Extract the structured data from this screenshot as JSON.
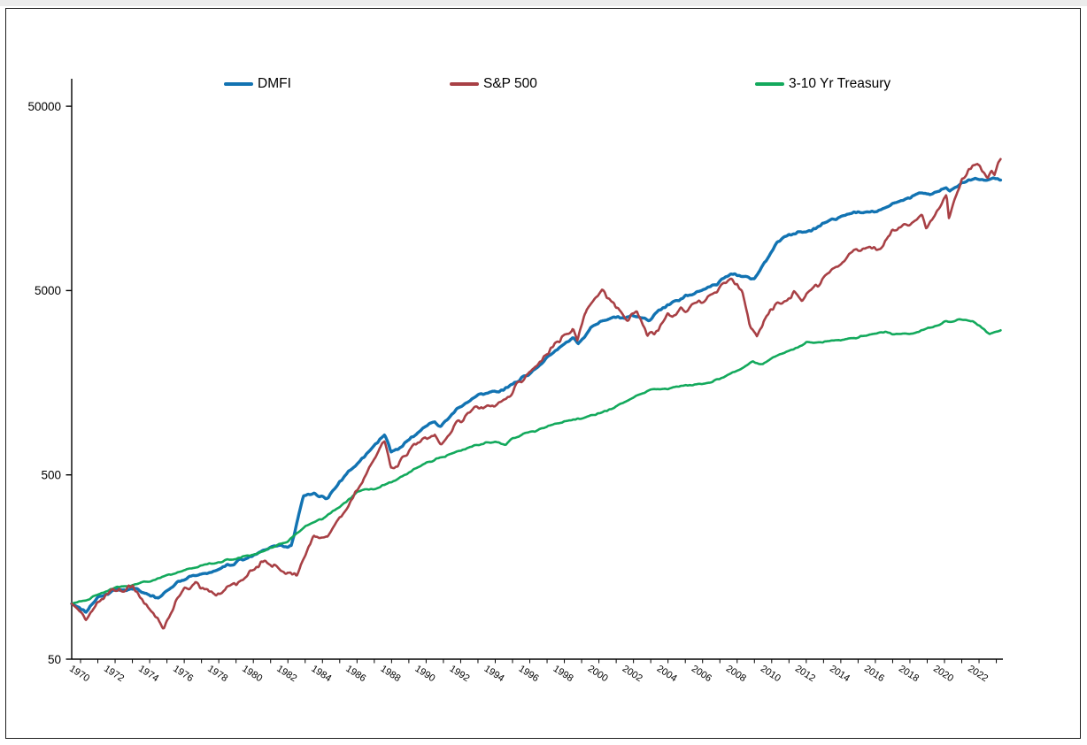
{
  "page": {
    "background": "#ffffff",
    "frame_border_color": "#1f1f1f"
  },
  "legend": [
    {
      "label": "DMFI",
      "color": "#1273b2"
    },
    {
      "label": "S&P 500",
      "color": "#a84045"
    },
    {
      "label": "3-10 Yr Treasury",
      "color": "#13a95c"
    }
  ],
  "chart_data": {
    "type": "line",
    "title": "",
    "xlabel": "",
    "ylabel": "",
    "grid": false,
    "legend_position": "top",
    "y_axis": {
      "scale": "log",
      "tick_values": [
        50,
        500,
        5000,
        50000
      ],
      "tick_labels": [
        "50",
        "500",
        "5000",
        "50000"
      ],
      "min": 50,
      "max": 70000
    },
    "x_axis": {
      "start_year": 1969.49,
      "end_year": 2023.3,
      "minor_tick_every_years": 1,
      "labeled_years": [
        1970,
        1972,
        1974,
        1976,
        1978,
        1980,
        1982,
        1984,
        1986,
        1988,
        1990,
        1992,
        1994,
        1996,
        1998,
        2000,
        2002,
        2004,
        2006,
        2008,
        2010,
        2012,
        2014,
        2016,
        2018,
        2020,
        2022
      ],
      "label_rotation_deg": 33
    },
    "series": [
      {
        "name": "DMFI",
        "color": "#1273b2",
        "width": 3.4,
        "noise_amp": 0.011,
        "seed": 7,
        "points": [
          [
            1969.49,
            100
          ],
          [
            1970.3,
            90
          ],
          [
            1971,
            108
          ],
          [
            1972,
            118
          ],
          [
            1973,
            121
          ],
          [
            1974.5,
            108
          ],
          [
            1975.5,
            128
          ],
          [
            1976.5,
            142
          ],
          [
            1978,
            154
          ],
          [
            1979,
            168
          ],
          [
            1980,
            182
          ],
          [
            1981,
            200
          ],
          [
            1982.2,
            208
          ],
          [
            1982.9,
            385
          ],
          [
            1983.5,
            405
          ],
          [
            1984.2,
            365
          ],
          [
            1985,
            460
          ],
          [
            1986,
            570
          ],
          [
            1987.6,
            840
          ],
          [
            1987.95,
            660
          ],
          [
            1988.5,
            710
          ],
          [
            1989.8,
            900
          ],
          [
            1990.5,
            960
          ],
          [
            1990.85,
            905
          ],
          [
            1992,
            1180
          ],
          [
            1993,
            1340
          ],
          [
            1994.5,
            1430
          ],
          [
            1995.5,
            1650
          ],
          [
            1996.5,
            1950
          ],
          [
            1997.5,
            2350
          ],
          [
            1998.5,
            2750
          ],
          [
            1998.8,
            2550
          ],
          [
            1999.5,
            3100
          ],
          [
            2000.2,
            3450
          ],
          [
            2001,
            3650
          ],
          [
            2002,
            3600
          ],
          [
            2002.9,
            3480
          ],
          [
            2003.5,
            3900
          ],
          [
            2004.5,
            4400
          ],
          [
            2005.5,
            4800
          ],
          [
            2006.5,
            5250
          ],
          [
            2007.7,
            6150
          ],
          [
            2008.5,
            6000
          ],
          [
            2008.95,
            5800
          ],
          [
            2009.3,
            6300
          ],
          [
            2010.3,
            9000
          ],
          [
            2011,
            10000
          ],
          [
            2012,
            10400
          ],
          [
            2013,
            11500
          ],
          [
            2014,
            12700
          ],
          [
            2015,
            13400
          ],
          [
            2016.1,
            13500
          ],
          [
            2017,
            15000
          ],
          [
            2018,
            16200
          ],
          [
            2019,
            16800
          ],
          [
            2020.1,
            17900
          ],
          [
            2020.3,
            17100
          ],
          [
            2021,
            19400
          ],
          [
            2021.8,
            20100
          ],
          [
            2022.3,
            19800
          ],
          [
            2022.7,
            20200
          ],
          [
            2023.25,
            20100
          ]
        ]
      },
      {
        "name": "S&P 500",
        "color": "#a84045",
        "width": 2.6,
        "noise_amp": 0.02,
        "seed": 42,
        "points": [
          [
            1969.49,
            100
          ],
          [
            1970.3,
            82
          ],
          [
            1971,
            103
          ],
          [
            1972,
            118
          ],
          [
            1973,
            122
          ],
          [
            1974,
            95
          ],
          [
            1974.8,
            73
          ],
          [
            1975.5,
            105
          ],
          [
            1976.5,
            130
          ],
          [
            1978,
            114
          ],
          [
            1979,
            130
          ],
          [
            1980.6,
            168
          ],
          [
            1981.5,
            158
          ],
          [
            1982.5,
            142
          ],
          [
            1983.5,
            235
          ],
          [
            1984.3,
            228
          ],
          [
            1985,
            290
          ],
          [
            1986,
            420
          ],
          [
            1987.6,
            760
          ],
          [
            1987.95,
            530
          ],
          [
            1988.5,
            590
          ],
          [
            1989.8,
            800
          ],
          [
            1990.5,
            850
          ],
          [
            1990.85,
            720
          ],
          [
            1992,
            1000
          ],
          [
            1993,
            1150
          ],
          [
            1994.5,
            1250
          ],
          [
            1995.5,
            1600
          ],
          [
            1996.5,
            2000
          ],
          [
            1997.5,
            2600
          ],
          [
            1998.5,
            3100
          ],
          [
            1998.75,
            2700
          ],
          [
            1999.3,
            3900
          ],
          [
            2000.2,
            4950
          ],
          [
            2000.8,
            4300
          ],
          [
            2001.7,
            3500
          ],
          [
            2002.2,
            3900
          ],
          [
            2002.8,
            2780
          ],
          [
            2003.2,
            2950
          ],
          [
            2004,
            3650
          ],
          [
            2005,
            3950
          ],
          [
            2006,
            4400
          ],
          [
            2007.7,
            5900
          ],
          [
            2008.3,
            4900
          ],
          [
            2008.7,
            3300
          ],
          [
            2009.15,
            2800
          ],
          [
            2009.9,
            4000
          ],
          [
            2010.5,
            4200
          ],
          [
            2011.3,
            4900
          ],
          [
            2011.75,
            4400
          ],
          [
            2012.5,
            5200
          ],
          [
            2013.5,
            6500
          ],
          [
            2014.5,
            7900
          ],
          [
            2015.5,
            8700
          ],
          [
            2016.2,
            8600
          ],
          [
            2017,
            10300
          ],
          [
            2018.7,
            12800
          ],
          [
            2018.95,
            11000
          ],
          [
            2019.8,
            14500
          ],
          [
            2020.12,
            16800
          ],
          [
            2020.26,
            12400
          ],
          [
            2021,
            20000
          ],
          [
            2021.9,
            24800
          ],
          [
            2022.5,
            20300
          ],
          [
            2022.72,
            22300
          ],
          [
            2022.9,
            21000
          ],
          [
            2023.1,
            24500
          ],
          [
            2023.25,
            25800
          ]
        ]
      },
      {
        "name": "3-10 Yr Treasury",
        "color": "#13a95c",
        "width": 2.6,
        "noise_amp": 0.006,
        "seed": 99,
        "points": [
          [
            1969.49,
            100
          ],
          [
            1970.5,
            106
          ],
          [
            1971,
            113
          ],
          [
            1972,
            122
          ],
          [
            1973,
            127
          ],
          [
            1974,
            133
          ],
          [
            1975,
            142
          ],
          [
            1976,
            152
          ],
          [
            1977,
            160
          ],
          [
            1978,
            168
          ],
          [
            1979,
            176
          ],
          [
            1980,
            185
          ],
          [
            1981,
            200
          ],
          [
            1982,
            218
          ],
          [
            1983,
            262
          ],
          [
            1984,
            290
          ],
          [
            1985,
            335
          ],
          [
            1986,
            405
          ],
          [
            1987,
            420
          ],
          [
            1988,
            455
          ],
          [
            1989,
            515
          ],
          [
            1990,
            580
          ],
          [
            1991,
            630
          ],
          [
            1992,
            680
          ],
          [
            1993,
            730
          ],
          [
            1994,
            760
          ],
          [
            1994.6,
            725
          ],
          [
            1995,
            790
          ],
          [
            1996,
            850
          ],
          [
            1997,
            910
          ],
          [
            1998,
            980
          ],
          [
            1999,
            1010
          ],
          [
            2000,
            1080
          ],
          [
            2001,
            1180
          ],
          [
            2002,
            1310
          ],
          [
            2003,
            1440
          ],
          [
            2004,
            1480
          ],
          [
            2005,
            1520
          ],
          [
            2006,
            1560
          ],
          [
            2007,
            1660
          ],
          [
            2008,
            1850
          ],
          [
            2008.9,
            2050
          ],
          [
            2009.5,
            2000
          ],
          [
            2010,
            2150
          ],
          [
            2011,
            2350
          ],
          [
            2011.8,
            2550
          ],
          [
            2012,
            2600
          ],
          [
            2013,
            2620
          ],
          [
            2014,
            2700
          ],
          [
            2015,
            2780
          ],
          [
            2016,
            2900
          ],
          [
            2016.6,
            2980
          ],
          [
            2017,
            2920
          ],
          [
            2018,
            2900
          ],
          [
            2019,
            3100
          ],
          [
            2020,
            3380
          ],
          [
            2020.6,
            3430
          ],
          [
            2021.2,
            3480
          ],
          [
            2021.6,
            3420
          ],
          [
            2022.2,
            3100
          ],
          [
            2022.6,
            2870
          ],
          [
            2022.9,
            2950
          ],
          [
            2023.25,
            3050
          ]
        ]
      }
    ]
  }
}
